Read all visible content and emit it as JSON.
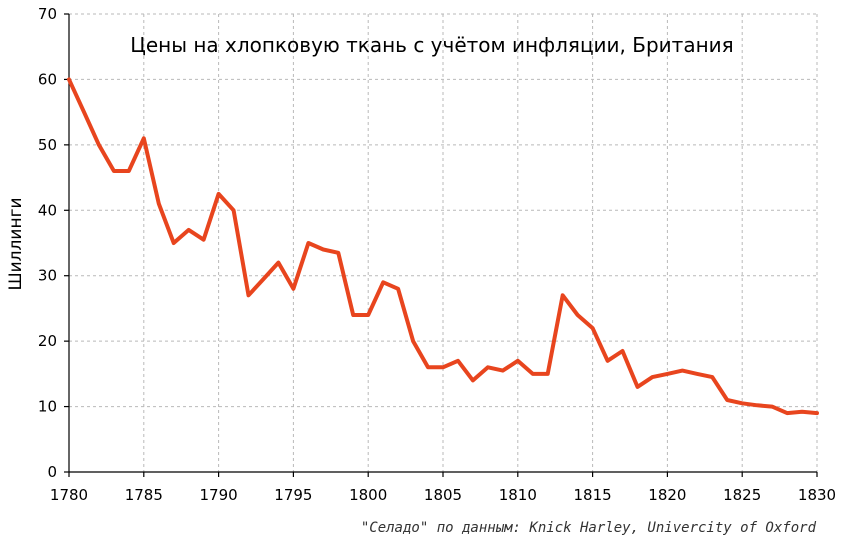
{
  "chart_data": {
    "type": "line",
    "title": "Цены на хлопковую ткань с учётом инфляции, Британия",
    "xlabel": "",
    "ylabel": "Шиллинги",
    "xlim": [
      1780,
      1830
    ],
    "ylim": [
      0,
      70
    ],
    "x_ticks": [
      "1780",
      "1785",
      "1790",
      "1795",
      "1800",
      "1805",
      "1810",
      "1815",
      "1820",
      "1825",
      "1830"
    ],
    "y_ticks": [
      "0",
      "10",
      "20",
      "30",
      "40",
      "50",
      "60",
      "70"
    ],
    "grid": true,
    "series": [
      {
        "color": "#e8451e",
        "x": [
          1780,
          1781,
          1782,
          1783,
          1784,
          1785,
          1786,
          1787,
          1788,
          1789,
          1790,
          1791,
          1792,
          1793,
          1794,
          1795,
          1796,
          1797,
          1798,
          1799,
          1800,
          1801,
          1802,
          1803,
          1804,
          1805,
          1806,
          1807,
          1808,
          1809,
          1810,
          1811,
          1812,
          1813,
          1814,
          1815,
          1816,
          1817,
          1818,
          1819,
          1820,
          1821,
          1822,
          1823,
          1824,
          1825,
          1826,
          1827,
          1828,
          1829,
          1830
        ],
        "y": [
          60,
          55,
          50,
          46,
          46,
          51,
          41,
          35,
          37,
          35.5,
          42.5,
          40,
          27,
          29.5,
          32,
          28,
          35,
          34,
          33.5,
          24,
          24,
          29,
          28,
          20,
          16,
          16,
          17,
          14,
          16,
          15.5,
          17,
          15,
          15,
          27,
          24,
          22,
          17,
          18.5,
          13,
          14.5,
          15,
          15.5,
          15,
          14.5,
          11,
          10.5,
          10.2,
          10,
          9,
          9.2,
          9
        ]
      }
    ],
    "source": "\"Селадо\" по данным: Knick Harley, Univercity of Oxford"
  }
}
